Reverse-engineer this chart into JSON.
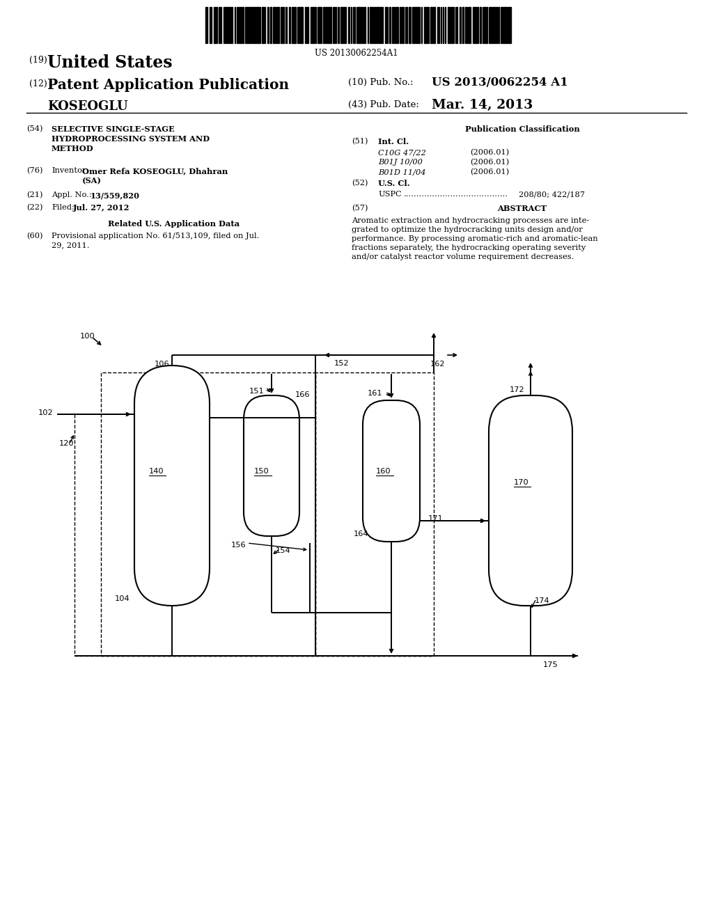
{
  "bg_color": "#ffffff",
  "barcode_text": "US 20130062254A1",
  "header": {
    "country_label": "(19)",
    "country": "United States",
    "type_label": "(12)",
    "type": "Patent Application Publication",
    "pub_no_label": "(10) Pub. No.:",
    "pub_no": "US 2013/0062254 A1",
    "inventor_surname": "KOSEOGLU",
    "pub_date_label": "(43) Pub. Date:",
    "pub_date": "Mar. 14, 2013"
  },
  "left_col": {
    "title_tag": "(54)",
    "title_text": "SELECTIVE SINGLE-STAGE\nHYDROPROCESSING SYSTEM AND\nMETHOD",
    "inventor_tag": "(76)",
    "inventor_label": "Inventor:",
    "inventor_value": "Omer Refa KOSEOGLU, Dhahran\n(SA)",
    "appl_tag": "(21)",
    "appl_label": "Appl. No.:",
    "appl_value": "13/559,820",
    "filed_tag": "(22)",
    "filed_label": "Filed:",
    "filed_value": "Jul. 27, 2012",
    "related_title": "Related U.S. Application Data",
    "prov_tag": "(60)",
    "prov_text": "Provisional application No. 61/513,109, filed on Jul.\n29, 2011."
  },
  "right_col": {
    "pub_class_title": "Publication Classification",
    "int_cl_label": "(51)",
    "int_cl_title": "Int. Cl.",
    "classes": [
      {
        "code": "C10G 47/22",
        "date": "(2006.01)"
      },
      {
        "code": "B01J 10/00",
        "date": "(2006.01)"
      },
      {
        "code": "B01D 11/04",
        "date": "(2006.01)"
      }
    ],
    "us_cl_label": "(52)",
    "us_cl_title": "U.S. Cl.",
    "uspc_label": "USPC",
    "uspc_dots": "........................................",
    "uspc_value": "208/80; 422/187",
    "abstract_label": "(57)",
    "abstract_title": "ABSTRACT",
    "abstract_text": "Aromatic extraction and hydrocracking processes are inte-\ngrated to optimize the hydrocracking units design and/or\nperformance. By processing aromatic-rich and aromatic-lean\nfractions separately, the hydrocracking operating severity\nand/or catalyst reactor volume requirement decreases."
  },
  "diagram_labels": {
    "n100": "100",
    "n102": "102",
    "n104": "104",
    "n106": "106",
    "n120": "120",
    "n140": "140",
    "n150": "150",
    "n151": "151",
    "n152": "152",
    "n154": "154",
    "n156": "156",
    "n160": "160",
    "n161": "161",
    "n162": "162",
    "n164": "164",
    "n166": "166",
    "n170": "170",
    "n171": "171",
    "n172": "172",
    "n174": "174",
    "n175": "175"
  }
}
